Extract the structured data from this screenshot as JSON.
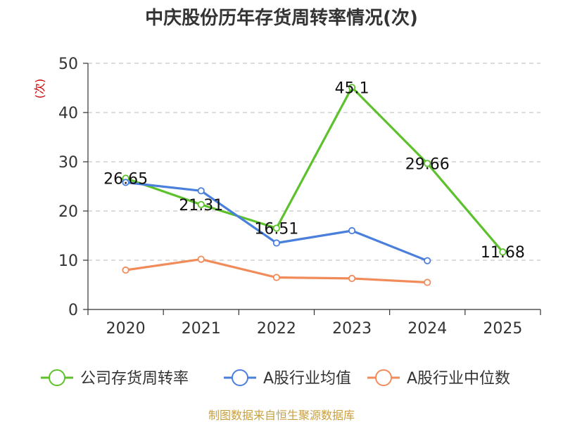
{
  "chart_data": {
    "type": "line",
    "title": "中庆股份历年存货周转率情况(次)",
    "ylabel": "(次)",
    "xlabel": "",
    "categories": [
      "2020",
      "2021",
      "2022",
      "2023",
      "2024",
      "2025"
    ],
    "ylim": [
      0,
      50
    ],
    "yticks": [
      0,
      10,
      20,
      30,
      40,
      50
    ],
    "grid": true,
    "legend_position": "bottom",
    "series": [
      {
        "name": "公司存货周转率",
        "color": "#5cc12a",
        "values": [
          26.65,
          21.31,
          16.51,
          45.1,
          29.66,
          11.68
        ],
        "labels": [
          "26.65",
          "21.31",
          "16.51",
          "45.1",
          "29.66",
          "11.68"
        ]
      },
      {
        "name": "A股行业均值",
        "color": "#4a7fdb",
        "values": [
          25.8,
          24.1,
          13.5,
          16.0,
          9.9,
          null
        ]
      },
      {
        "name": "A股行业中位数",
        "color": "#f28b5a",
        "values": [
          8.0,
          10.2,
          6.5,
          6.3,
          5.5,
          null
        ]
      }
    ],
    "source": "制图数据来自恒生聚源数据库"
  }
}
